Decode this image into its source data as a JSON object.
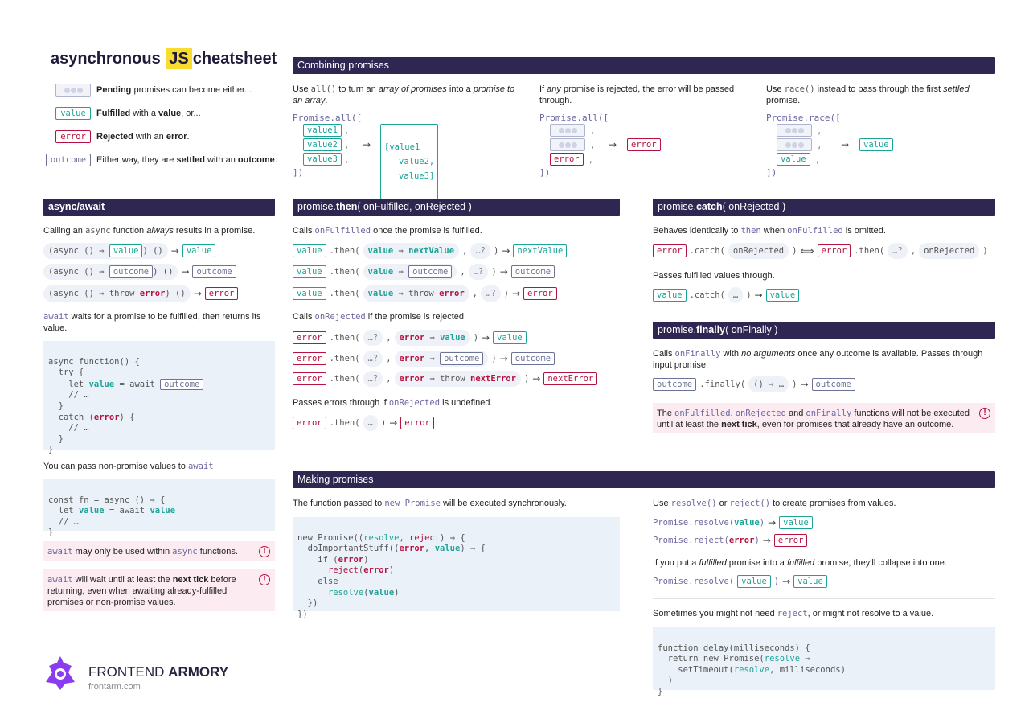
{
  "title": {
    "pre": "asynchronous",
    "js": "JS",
    "post": "cheatsheet"
  },
  "legend": {
    "pending": {
      "bold": "Pending",
      "rest": " promises can become either..."
    },
    "value_box": "value",
    "fulfilled": {
      "bold": "Fulfilled",
      "mid": " with a ",
      "bold2": "value",
      "rest": ", or..."
    },
    "error_box": "error",
    "rejected": {
      "bold": "Rejected",
      "mid": " with an ",
      "bold2": "error",
      "rest": "."
    },
    "outcome_box": "outcome",
    "settled": {
      "pre": "Either way, they are ",
      "bold": "settled",
      "mid": " with an ",
      "bold2": "outcome",
      "rest": "."
    }
  },
  "combining": {
    "header": "Combining promises",
    "all_desc": {
      "a": "Use ",
      "code": "all()",
      "b": " to turn an ",
      "i1": "array of promises",
      "c": " into a ",
      "i2": "promise to an array",
      "d": "."
    },
    "all_code": {
      "open": "Promise.all([",
      "v1": "value1",
      "v2": "value2",
      "v3": "value3",
      "close": "])",
      "res1": "[value1",
      "res2": "value2,",
      "res3": "value3]"
    },
    "rej_desc": {
      "a": "If ",
      "i": "any",
      "b": " promise is rejected, the error will be passed through."
    },
    "rej_code": {
      "open": "Promise.all([",
      "err": "error",
      "close": "])",
      "res": "error"
    },
    "race_desc": {
      "a": "Use ",
      "code": "race()",
      "b": " instead to pass through the first ",
      "i": "settled",
      "c": " promise."
    },
    "race_code": {
      "open": "Promise.race([",
      "val": "value",
      "close": "])",
      "res": "value"
    }
  },
  "async_await": {
    "header": "async/await",
    "desc1": {
      "a": "Calling an ",
      "code": "async",
      "b": " function ",
      "i": "always",
      "c": " results in a promise."
    },
    "rows": [
      {
        "pre": "(async () ⇒ ",
        "box": "value",
        "post": ") ()",
        "res": "value",
        "kind": "teal"
      },
      {
        "pre": "(async () ⇒ ",
        "box": "outcome",
        "post": ") ()",
        "res": "outcome",
        "kind": "gray"
      },
      {
        "pre": "(async () ⇒ throw ",
        "err": "error",
        "post": ") ()",
        "res": "error",
        "kind": "red"
      }
    ],
    "desc2": {
      "code": "await",
      "rest": " waits for a promise to be fulfilled, then returns its value."
    },
    "code1": [
      "async function() {",
      "  try {",
      "    let value = await ",
      "    // …",
      "  }",
      "  catch (error) {",
      "    // …",
      "  }",
      "}"
    ],
    "code1_box": "outcome",
    "desc3": {
      "a": "You can pass non-promise values to ",
      "code": "await"
    },
    "code2": [
      "const fn = async () ⇒ {",
      "  let value = await value",
      "  // …",
      "}"
    ],
    "warn1": {
      "code": "await",
      "a": " may only be used within ",
      "code2": "async",
      "b": " functions."
    },
    "warn2": {
      "code": "await",
      "a": " will wait until at least the ",
      "bold": "next tick",
      "b": " before returning, even when awaiting already-fulfilled promises or non-promise values."
    }
  },
  "then": {
    "header_pre": "promise.",
    "header_b": "then",
    "header_post": "( onFulfilled, onRejected )",
    "desc1": {
      "a": "Calls ",
      "code": "onFulfilled",
      "b": " once the promise is fulfilled."
    },
    "rows1": [
      {
        "box": "value",
        "arg": "value ⇒ nextValue",
        "dots": "…?",
        "res": "nextValue",
        "kind": "teal"
      },
      {
        "box": "value",
        "arg": "value ⇒ ",
        "argbox": "outcome",
        "dots": "…?",
        "res": "outcome",
        "kind": "gray"
      },
      {
        "box": "value",
        "arg": "value ⇒ throw error",
        "dots": "…?",
        "res": "error",
        "kind": "red"
      }
    ],
    "desc2": {
      "a": "Calls ",
      "code": "onRejected",
      "b": " if the promise is rejected."
    },
    "rows2": [
      {
        "box": "error",
        "dots": "…?",
        "arg": "error ⇒ value",
        "res": "value",
        "kind": "teal"
      },
      {
        "box": "error",
        "dots": "…?",
        "arg": "error ⇒ ",
        "argbox": "outcome",
        "res": "outcome",
        "kind": "gray"
      },
      {
        "box": "error",
        "dots": "…?",
        "arg": "error ⇒ throw nextError",
        "res": "nextError",
        "kind": "red"
      }
    ],
    "desc3": {
      "a": "Passes errors through if ",
      "code": "onRejected",
      "b": " is undefined."
    },
    "row3": {
      "box": "error",
      "dots": "…",
      "res": "error"
    },
    "then_word": ".then(",
    "close": ")"
  },
  "catch": {
    "header_pre": "promise.",
    "header_b": "catch",
    "header_post": "( onRejected )",
    "desc1": {
      "a": "Behaves identically to ",
      "code": "then",
      "b": " when ",
      "code2": "onFulfilled",
      "c": " is omitted."
    },
    "row1": {
      "box": "error",
      "catch": ".catch(",
      "arg": "onRejected",
      "eq": "⟺",
      "box2": "error",
      "then": ".then(",
      "dots": "…?",
      "arg2": "onRejected"
    },
    "desc2": "Passes fulfilled values through.",
    "row2": {
      "box": "value",
      "catch": ".catch(",
      "dots": "…",
      "res": "value"
    }
  },
  "finally": {
    "header_pre": "promise.",
    "header_b": "finally",
    "header_post": "( onFinally )",
    "desc1": {
      "a": "Calls ",
      "code": "onFinally",
      "b": " with ",
      "i": "no arguments",
      "c": " once any outcome is available. Passes through input promise."
    },
    "row": {
      "box": "outcome",
      "fin": ".finally(",
      "arg": "() ⇒ …",
      "res": "outcome"
    },
    "warn": {
      "a": "The ",
      "c1": "onFulfilled",
      "s1": ", ",
      "c2": "onRejected",
      "s2": " and ",
      "c3": "onFinally",
      "b": " functions will not be executed until at least the ",
      "bold": "next tick",
      "c": ", even for promises that already have an outcome."
    }
  },
  "making": {
    "header": "Making promises",
    "desc1": {
      "a": "The function passed to ",
      "code": "new Promise",
      "b": " will be executed synchronously."
    },
    "code": [
      "new Promise((resolve, reject) ⇒ {",
      "  doImportantStuff((error, value) ⇒ {",
      "    if (error)",
      "      reject(error)",
      "    else",
      "      resolve(value)",
      "  })",
      "})"
    ],
    "desc2": {
      "a": "Use ",
      "c1": "resolve()",
      "b": " or ",
      "c2": "reject()",
      "c": " to create promises from values."
    },
    "resolve_row": {
      "pre": "Promise.resolve(",
      "arg": "value",
      "close": ")",
      "res": "value"
    },
    "reject_row": {
      "pre": "Promise.reject(",
      "arg": "error",
      "close": ")",
      "res": "error"
    },
    "desc3": {
      "a": "If you put a ",
      "i1": "fulfilled",
      "b": " promise into a ",
      "i2": "fulfilled",
      "c": " promise, they'll collapse into one."
    },
    "collapse_row": {
      "pre": "Promise.resolve(",
      "box": "value",
      "close": ")",
      "res": "value"
    },
    "desc4": {
      "a": "Sometimes you might not need ",
      "code": "reject",
      "b": ", or might not resolve to a value."
    },
    "code2": [
      "function delay(milliseconds) {",
      "  return new Promise(resolve ⇒",
      "    setTimeout(resolve, milliseconds)",
      "  )",
      "}"
    ]
  },
  "brand": {
    "name_light": "FRONTEND ",
    "name_bold": "ARMORY",
    "url": "frontarm.com"
  },
  "colors": {
    "header_bg": "#2f2651",
    "teal": "#1ba396",
    "red": "#b5123f",
    "gray": "#6c7394",
    "code_bg": "#eaf1f9",
    "warn_bg": "#fcecf1",
    "logo": "#8b3cf0"
  }
}
